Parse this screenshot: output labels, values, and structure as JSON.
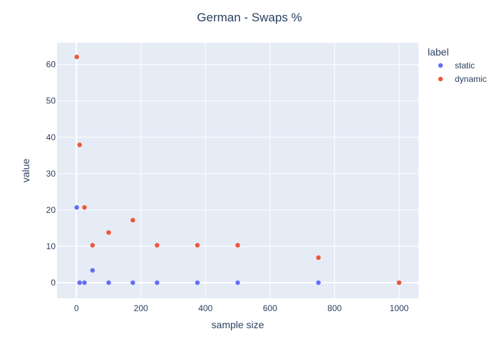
{
  "chart_data": {
    "type": "scatter",
    "title": "German - Swaps %",
    "xlabel": "sample size",
    "ylabel": "value",
    "xlim": [
      -60,
      1060
    ],
    "ylim": [
      -4.3,
      66
    ],
    "xticks": [
      0,
      200,
      400,
      600,
      800,
      1000
    ],
    "yticks": [
      0,
      10,
      20,
      30,
      40,
      50,
      60
    ],
    "grid": true,
    "legend": {
      "title": "label",
      "placement": "right"
    },
    "series": [
      {
        "name": "static",
        "color": "#636efa",
        "x": [
          1,
          10,
          25,
          50,
          100,
          175,
          250,
          375,
          500,
          750,
          1000
        ],
        "y": [
          20.7,
          0,
          0,
          3.4,
          0,
          0,
          0,
          0,
          0,
          0,
          0
        ]
      },
      {
        "name": "dynamic",
        "color": "#ef553b",
        "x": [
          1,
          10,
          25,
          50,
          100,
          175,
          250,
          375,
          500,
          750,
          1000
        ],
        "y": [
          62.1,
          37.9,
          20.7,
          10.3,
          13.8,
          17.2,
          10.3,
          10.3,
          10.3,
          6.9,
          0
        ]
      }
    ]
  }
}
